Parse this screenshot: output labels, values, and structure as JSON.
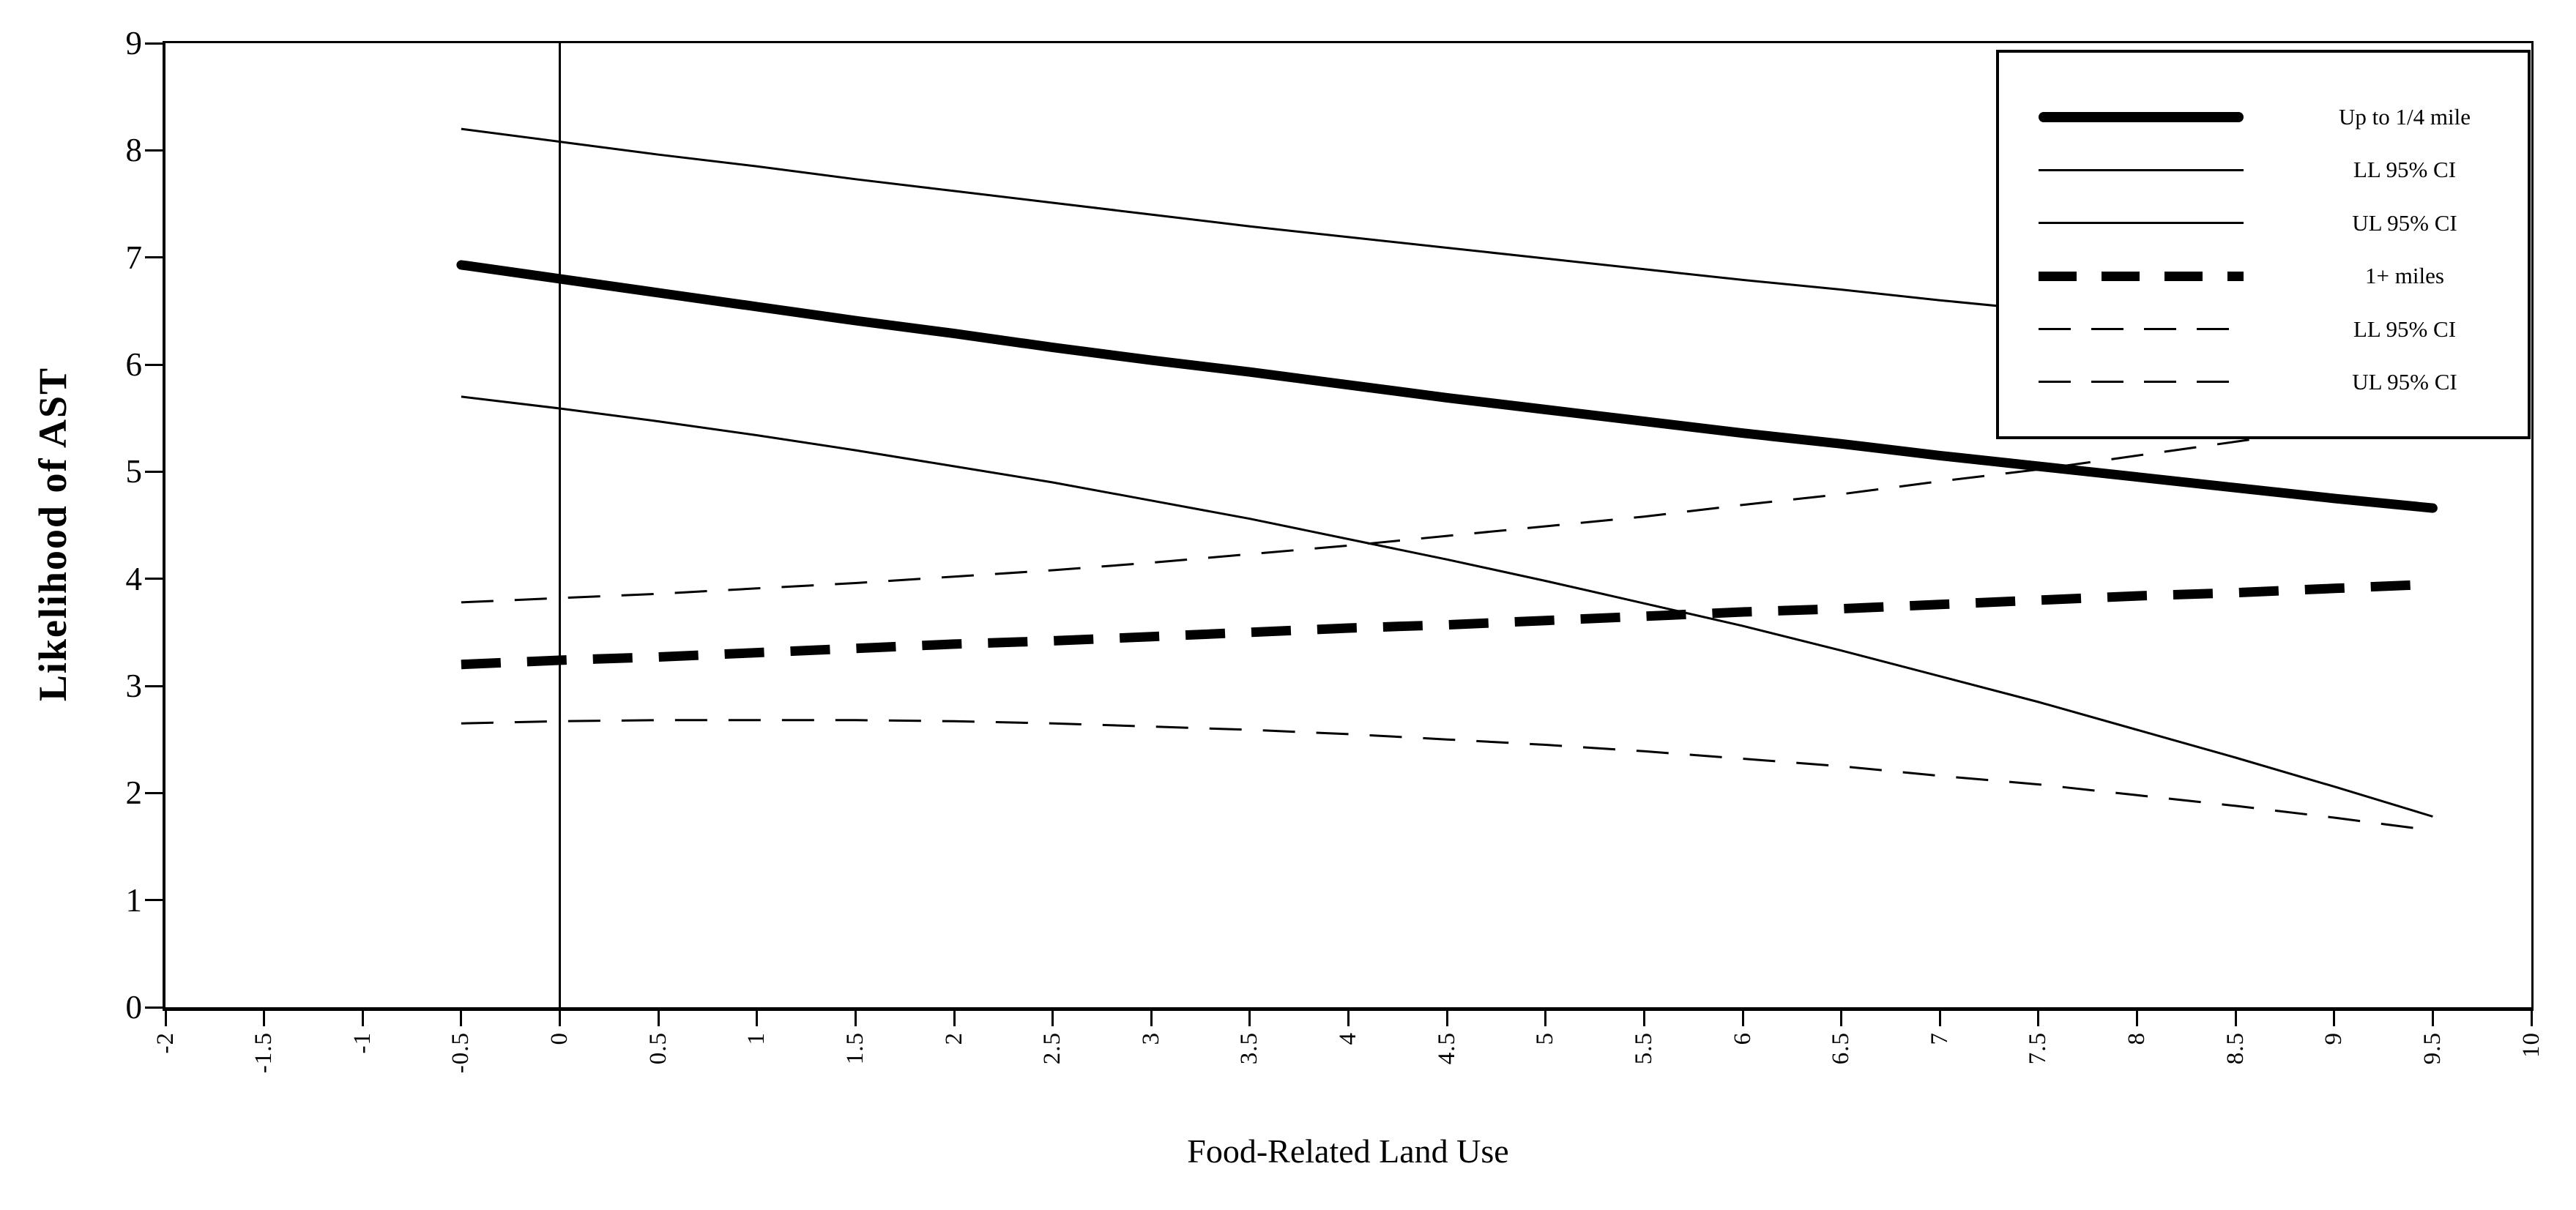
{
  "axes": {
    "x": {
      "title": "Food-Related Land Use",
      "min": -2,
      "max": 10,
      "tick_labels": [
        "-2",
        "-1.5",
        "-1",
        "-0.5",
        "0",
        "0.5",
        "1",
        "1.5",
        "2",
        "2.5",
        "3",
        "3.5",
        "4",
        "4.5",
        "5",
        "5.5",
        "6",
        "6.5",
        "7",
        "7.5",
        "8",
        "8.5",
        "9",
        "9.5",
        "10"
      ]
    },
    "y": {
      "title": "Likelihood of AST",
      "min": 0,
      "max": 9,
      "tick_labels": [
        "0",
        "1",
        "2",
        "3",
        "4",
        "5",
        "6",
        "7",
        "8",
        "9"
      ]
    }
  },
  "legend": {
    "entries": [
      {
        "label": "Up to 1/4 mile",
        "sample": "thick-solid-line-icon",
        "style": "thick-solid"
      },
      {
        "label": "LL 95% CI",
        "sample": "thin-solid-line-icon",
        "style": "thin-solid"
      },
      {
        "label": "UL 95% CI",
        "sample": "thin-solid-line-icon",
        "style": "thin-solid"
      },
      {
        "label": "1+ miles",
        "sample": "thick-dashed-line-icon",
        "style": "thick-dashed"
      },
      {
        "label": "LL 95% CI",
        "sample": "thin-dashed-line-icon",
        "style": "thin-dashed"
      },
      {
        "label": "UL 95% CI",
        "sample": "thin-dashed-line-icon",
        "style": "thin-dashed"
      }
    ]
  },
  "colors": {
    "line": "#000000",
    "background": "#ffffff"
  },
  "chart_data": {
    "type": "line",
    "title": "",
    "xlabel": "Food-Related Land Use",
    "ylabel": "Likelihood of AST",
    "xlim": [
      -2,
      10
    ],
    "ylim": [
      0,
      9
    ],
    "x_tick_step": 0.5,
    "y_tick_step": 1,
    "grid": false,
    "legend_position": "top-right",
    "reference_line_x": 0,
    "x": [
      -0.5,
      0,
      0.5,
      1,
      1.5,
      2,
      2.5,
      3,
      3.5,
      4,
      4.5,
      5,
      5.5,
      6,
      6.5,
      7,
      7.5,
      8,
      8.5,
      9,
      9.5
    ],
    "series": [
      {
        "name": "Up to 1/4 mile",
        "style": "thick-solid",
        "values": [
          6.93,
          6.8,
          6.67,
          6.54,
          6.41,
          6.29,
          6.16,
          6.04,
          5.93,
          5.81,
          5.69,
          5.58,
          5.47,
          5.36,
          5.26,
          5.15,
          5.05,
          4.95,
          4.85,
          4.75,
          4.66
        ]
      },
      {
        "name": "LL 95% CI",
        "group": "Up to 1/4 mile",
        "style": "thin-solid",
        "values": [
          5.7,
          5.59,
          5.47,
          5.34,
          5.2,
          5.05,
          4.9,
          4.73,
          4.56,
          4.37,
          4.18,
          3.98,
          3.77,
          3.56,
          3.33,
          3.09,
          2.85,
          2.59,
          2.33,
          2.06,
          1.78
        ]
      },
      {
        "name": "UL 95% CI",
        "group": "Up to 1/4 mile",
        "style": "thin-solid",
        "values": [
          8.2,
          8.08,
          7.96,
          7.85,
          7.73,
          7.62,
          7.51,
          7.4,
          7.29,
          7.19,
          7.09,
          6.99,
          6.89,
          6.79,
          6.7,
          6.6,
          6.51,
          6.42,
          6.34,
          6.25,
          6.17
        ]
      },
      {
        "name": "1+ miles",
        "style": "thick-dashed",
        "values": [
          3.2,
          3.24,
          3.27,
          3.31,
          3.35,
          3.39,
          3.42,
          3.46,
          3.5,
          3.54,
          3.57,
          3.61,
          3.65,
          3.69,
          3.72,
          3.76,
          3.8,
          3.84,
          3.87,
          3.91,
          3.95
        ]
      },
      {
        "name": "LL 95% CI",
        "group": "1+ miles",
        "style": "thin-dashed",
        "values": [
          2.65,
          2.67,
          2.68,
          2.68,
          2.68,
          2.67,
          2.65,
          2.62,
          2.59,
          2.55,
          2.5,
          2.45,
          2.39,
          2.32,
          2.25,
          2.16,
          2.08,
          1.98,
          1.88,
          1.77,
          1.65
        ]
      },
      {
        "name": "UL 95% CI",
        "group": "1+ miles",
        "style": "thin-dashed",
        "values": [
          3.78,
          3.82,
          3.86,
          3.91,
          3.96,
          4.02,
          4.08,
          4.15,
          4.23,
          4.31,
          4.4,
          4.49,
          4.58,
          4.69,
          4.79,
          4.91,
          5.02,
          5.15,
          5.28,
          5.41,
          5.55
        ]
      }
    ]
  }
}
